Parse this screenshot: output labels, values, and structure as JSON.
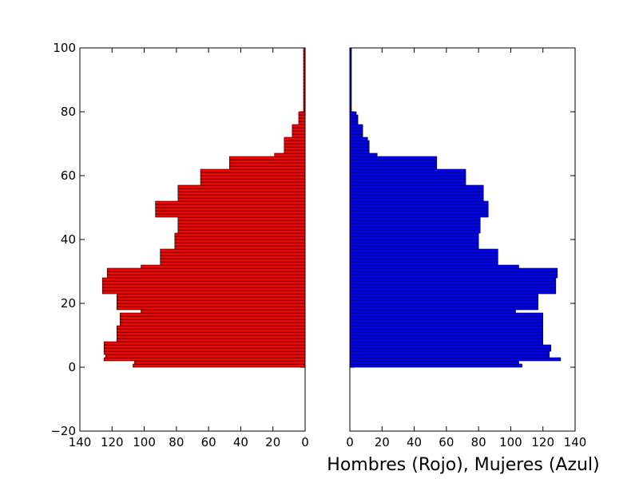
{
  "chart_data": {
    "type": "bar",
    "orientation": "horizontal",
    "layout": "population-pyramid",
    "xlabel": "Hombres (Rojo), Mujeres (Azul)",
    "ylim": [
      -20,
      100
    ],
    "yticks": [
      -20,
      0,
      20,
      40,
      60,
      80,
      100
    ],
    "y_tick_labels": [
      "−20",
      "0",
      "20",
      "40",
      "60",
      "80",
      "100"
    ],
    "x_tick_labels_left": [
      "140",
      "120",
      "100",
      "80",
      "60",
      "40",
      "20",
      "0"
    ],
    "x_tick_labels_right": [
      "0",
      "20",
      "40",
      "60",
      "80",
      "100",
      "120",
      "140"
    ],
    "xlim": [
      0,
      140
    ],
    "xticks": [
      0,
      20,
      40,
      60,
      80,
      100,
      120,
      140
    ],
    "grid": false,
    "legend": "none",
    "ages": [
      0,
      1,
      2,
      3,
      4,
      5,
      6,
      7,
      8,
      9,
      10,
      11,
      12,
      13,
      14,
      15,
      16,
      17,
      18,
      19,
      20,
      21,
      22,
      23,
      24,
      25,
      26,
      27,
      28,
      29,
      30,
      31,
      32,
      33,
      34,
      35,
      36,
      37,
      38,
      39,
      40,
      41,
      42,
      43,
      44,
      45,
      46,
      47,
      48,
      49,
      50,
      51,
      52,
      53,
      54,
      55,
      56,
      57,
      58,
      59,
      60,
      61,
      62,
      63,
      64,
      65,
      66,
      67,
      68,
      69,
      70,
      71,
      72,
      73,
      74,
      75,
      76,
      77,
      78,
      79,
      80,
      81,
      82,
      83,
      84,
      85,
      86,
      87,
      88,
      89,
      90,
      91,
      92,
      93,
      94,
      95,
      96,
      97,
      98,
      99
    ],
    "series": [
      {
        "side": "left",
        "color": "#ff0000",
        "values": [
          107,
          106,
          125,
          124,
          125,
          125,
          125,
          125,
          117,
          117,
          117,
          117,
          117,
          115,
          115,
          115,
          115,
          102,
          117,
          117,
          117,
          117,
          117,
          126,
          126,
          126,
          126,
          126,
          123,
          123,
          123,
          102,
          90,
          90,
          90,
          90,
          90,
          81,
          81,
          81,
          81,
          81,
          79,
          79,
          79,
          79,
          79,
          93,
          93,
          93,
          93,
          93,
          79,
          79,
          79,
          79,
          79,
          65,
          65,
          65,
          65,
          65,
          47,
          47,
          47,
          47,
          19,
          13,
          13,
          13,
          13,
          13,
          8,
          8,
          8,
          8,
          4,
          4,
          4,
          4,
          1,
          1,
          1,
          1,
          1,
          1,
          1,
          1,
          1,
          1,
          1,
          1,
          1,
          1,
          1,
          1,
          1,
          1,
          1,
          1
        ]
      },
      {
        "side": "right",
        "color": "#0000ff",
        "values": [
          107,
          105,
          131,
          124,
          124,
          125,
          125,
          120,
          120,
          120,
          120,
          120,
          120,
          120,
          120,
          120,
          120,
          103,
          117,
          117,
          117,
          117,
          117,
          128,
          128,
          128,
          128,
          128,
          129,
          129,
          129,
          105,
          92,
          92,
          92,
          92,
          92,
          80,
          80,
          80,
          80,
          80,
          81,
          81,
          81,
          81,
          81,
          86,
          86,
          86,
          86,
          86,
          83,
          83,
          83,
          83,
          83,
          72,
          72,
          72,
          72,
          72,
          54,
          54,
          54,
          54,
          17,
          12,
          12,
          12,
          12,
          11,
          8,
          8,
          8,
          8,
          5,
          5,
          5,
          4,
          1,
          1,
          1,
          1,
          1,
          1,
          1,
          1,
          1,
          1,
          1,
          1,
          1,
          1,
          1,
          1,
          1,
          1,
          1,
          1
        ]
      }
    ]
  }
}
